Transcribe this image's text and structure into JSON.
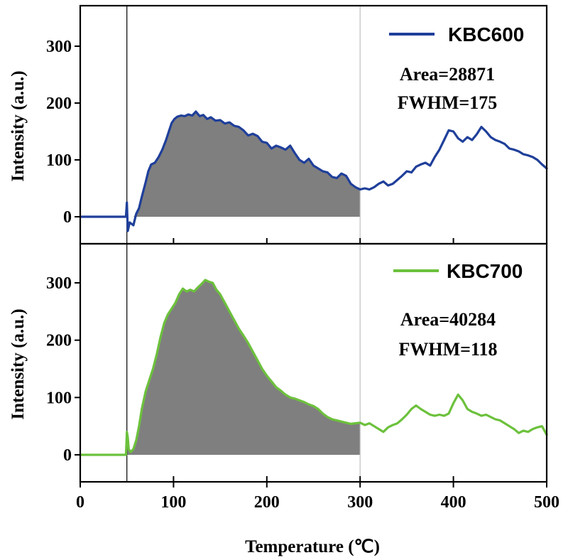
{
  "chart_data": {
    "type": "line",
    "x_axis": {
      "label": "Temperature (℃)",
      "range": [
        0,
        500
      ],
      "ticks": [
        0,
        100,
        200,
        300,
        400,
        500
      ],
      "tick_labels": [
        "0",
        "100",
        "200",
        "300",
        "400",
        "500"
      ]
    },
    "marker_lines": [
      {
        "x": 50,
        "color": "#000000"
      },
      {
        "x": 300,
        "color": "#bfbfbf"
      }
    ],
    "panels": [
      {
        "name": "KBC600",
        "legend_label": "KBC600",
        "color": "#1f3f9a",
        "ylabel": "Intensity (a.u.)",
        "ylim": [
          -30,
          365
        ],
        "yticks": [
          0,
          100,
          200,
          300
        ],
        "ytick_labels": [
          "0",
          "100",
          "200",
          "300"
        ],
        "area_label": "Area=28871",
        "fwhm_label": "FWHM=175",
        "shaded_range": [
          55,
          300
        ],
        "points": [
          [
            0,
            0
          ],
          [
            49,
            0
          ],
          [
            50,
            25
          ],
          [
            51,
            -25
          ],
          [
            53,
            -10
          ],
          [
            57,
            -15
          ],
          [
            60,
            5
          ],
          [
            63,
            15
          ],
          [
            66,
            35
          ],
          [
            70,
            60
          ],
          [
            73,
            80
          ],
          [
            76,
            92
          ],
          [
            80,
            95
          ],
          [
            84,
            105
          ],
          [
            88,
            118
          ],
          [
            92,
            135
          ],
          [
            95,
            150
          ],
          [
            98,
            165
          ],
          [
            101,
            172
          ],
          [
            104,
            176
          ],
          [
            108,
            178
          ],
          [
            112,
            177
          ],
          [
            116,
            180
          ],
          [
            120,
            178
          ],
          [
            124,
            185
          ],
          [
            128,
            177
          ],
          [
            132,
            179
          ],
          [
            136,
            172
          ],
          [
            140,
            175
          ],
          [
            145,
            169
          ],
          [
            150,
            170
          ],
          [
            155,
            164
          ],
          [
            160,
            166
          ],
          [
            165,
            160
          ],
          [
            170,
            158
          ],
          [
            175,
            152
          ],
          [
            180,
            143
          ],
          [
            185,
            146
          ],
          [
            190,
            142
          ],
          [
            195,
            132
          ],
          [
            200,
            130
          ],
          [
            205,
            120
          ],
          [
            210,
            125
          ],
          [
            215,
            122
          ],
          [
            220,
            118
          ],
          [
            225,
            125
          ],
          [
            230,
            112
          ],
          [
            235,
            100
          ],
          [
            240,
            95
          ],
          [
            245,
            102
          ],
          [
            250,
            90
          ],
          [
            255,
            85
          ],
          [
            260,
            80
          ],
          [
            265,
            78
          ],
          [
            270,
            70
          ],
          [
            275,
            68
          ],
          [
            280,
            76
          ],
          [
            285,
            72
          ],
          [
            290,
            58
          ],
          [
            295,
            52
          ],
          [
            300,
            48
          ],
          [
            305,
            50
          ],
          [
            310,
            48
          ],
          [
            315,
            52
          ],
          [
            320,
            58
          ],
          [
            325,
            62
          ],
          [
            330,
            55
          ],
          [
            335,
            58
          ],
          [
            340,
            65
          ],
          [
            345,
            72
          ],
          [
            350,
            80
          ],
          [
            355,
            78
          ],
          [
            360,
            88
          ],
          [
            365,
            92
          ],
          [
            370,
            95
          ],
          [
            375,
            90
          ],
          [
            380,
            105
          ],
          [
            385,
            118
          ],
          [
            390,
            135
          ],
          [
            395,
            152
          ],
          [
            400,
            150
          ],
          [
            405,
            138
          ],
          [
            410,
            132
          ],
          [
            415,
            140
          ],
          [
            420,
            135
          ],
          [
            425,
            145
          ],
          [
            430,
            158
          ],
          [
            435,
            150
          ],
          [
            440,
            140
          ],
          [
            445,
            135
          ],
          [
            450,
            132
          ],
          [
            455,
            128
          ],
          [
            460,
            120
          ],
          [
            465,
            118
          ],
          [
            470,
            115
          ],
          [
            475,
            110
          ],
          [
            480,
            108
          ],
          [
            485,
            105
          ],
          [
            490,
            100
          ],
          [
            495,
            92
          ],
          [
            500,
            85
          ]
        ]
      },
      {
        "name": "KBC700",
        "legend_label": "KBC700",
        "color": "#6cc13c",
        "ylabel": "Intensity (a.u.)",
        "ylim": [
          -40,
          365
        ],
        "yticks": [
          0,
          100,
          200,
          300
        ],
        "ytick_labels": [
          "0",
          "100",
          "200",
          "300"
        ],
        "area_label": "Area=40284",
        "fwhm_label": "FWHM=118",
        "shaded_range": [
          50,
          300
        ],
        "points": [
          [
            0,
            0
          ],
          [
            49,
            0
          ],
          [
            50,
            40
          ],
          [
            51,
            30
          ],
          [
            52,
            10
          ],
          [
            54,
            5
          ],
          [
            57,
            10
          ],
          [
            60,
            25
          ],
          [
            63,
            50
          ],
          [
            66,
            80
          ],
          [
            70,
            110
          ],
          [
            74,
            130
          ],
          [
            78,
            150
          ],
          [
            82,
            175
          ],
          [
            86,
            205
          ],
          [
            90,
            230
          ],
          [
            94,
            245
          ],
          [
            98,
            255
          ],
          [
            102,
            265
          ],
          [
            106,
            280
          ],
          [
            110,
            290
          ],
          [
            114,
            285
          ],
          [
            118,
            288
          ],
          [
            122,
            285
          ],
          [
            126,
            292
          ],
          [
            130,
            298
          ],
          [
            134,
            305
          ],
          [
            138,
            302
          ],
          [
            142,
            300
          ],
          [
            146,
            288
          ],
          [
            150,
            280
          ],
          [
            155,
            265
          ],
          [
            160,
            250
          ],
          [
            165,
            235
          ],
          [
            170,
            220
          ],
          [
            175,
            208
          ],
          [
            180,
            195
          ],
          [
            185,
            180
          ],
          [
            190,
            165
          ],
          [
            195,
            150
          ],
          [
            200,
            138
          ],
          [
            205,
            128
          ],
          [
            210,
            118
          ],
          [
            215,
            112
          ],
          [
            220,
            105
          ],
          [
            225,
            100
          ],
          [
            230,
            98
          ],
          [
            235,
            95
          ],
          [
            240,
            92
          ],
          [
            245,
            88
          ],
          [
            250,
            85
          ],
          [
            255,
            80
          ],
          [
            260,
            72
          ],
          [
            265,
            66
          ],
          [
            270,
            62
          ],
          [
            275,
            60
          ],
          [
            280,
            58
          ],
          [
            285,
            56
          ],
          [
            290,
            54
          ],
          [
            295,
            55
          ],
          [
            300,
            56
          ],
          [
            305,
            52
          ],
          [
            310,
            55
          ],
          [
            315,
            50
          ],
          [
            320,
            45
          ],
          [
            325,
            40
          ],
          [
            330,
            48
          ],
          [
            335,
            52
          ],
          [
            340,
            55
          ],
          [
            345,
            62
          ],
          [
            350,
            70
          ],
          [
            355,
            80
          ],
          [
            360,
            86
          ],
          [
            365,
            80
          ],
          [
            370,
            75
          ],
          [
            375,
            70
          ],
          [
            380,
            68
          ],
          [
            385,
            70
          ],
          [
            390,
            68
          ],
          [
            395,
            72
          ],
          [
            400,
            90
          ],
          [
            405,
            105
          ],
          [
            410,
            95
          ],
          [
            415,
            80
          ],
          [
            420,
            75
          ],
          [
            425,
            72
          ],
          [
            430,
            68
          ],
          [
            435,
            70
          ],
          [
            440,
            66
          ],
          [
            445,
            62
          ],
          [
            450,
            60
          ],
          [
            455,
            55
          ],
          [
            460,
            50
          ],
          [
            465,
            45
          ],
          [
            470,
            38
          ],
          [
            475,
            42
          ],
          [
            480,
            40
          ],
          [
            485,
            45
          ],
          [
            490,
            48
          ],
          [
            495,
            50
          ],
          [
            500,
            35
          ]
        ]
      }
    ]
  }
}
